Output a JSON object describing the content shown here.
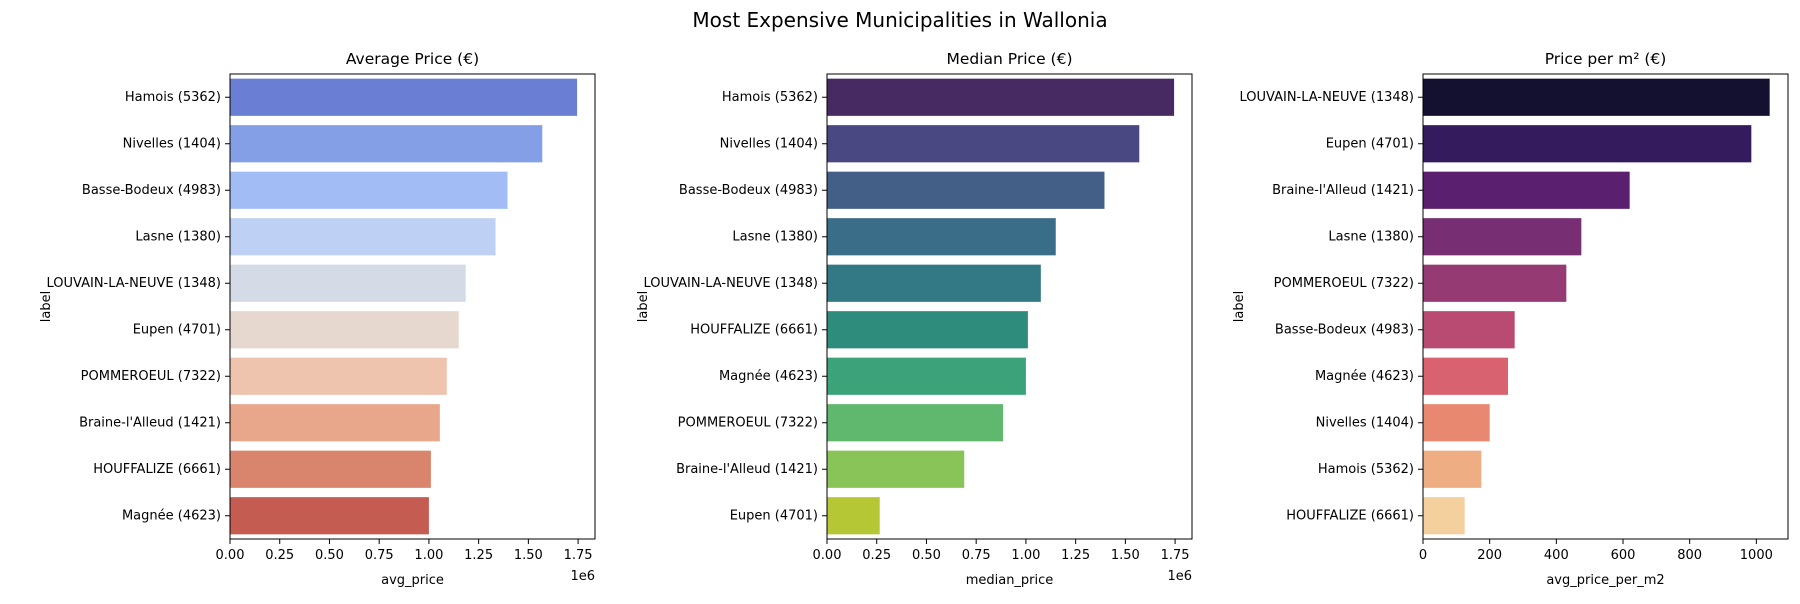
{
  "suptitle": "Most Expensive Municipalities in Wallonia",
  "chart_data": [
    {
      "type": "bar",
      "orientation": "horizontal",
      "title": "Average Price (€)",
      "xlabel": "avg_price",
      "ylabel": "label",
      "offset_label": "1e6",
      "xlim": [
        0,
        1.835
      ],
      "xticks": [
        0,
        0.25,
        0.5,
        0.75,
        1.0,
        1.25,
        1.5,
        1.75
      ],
      "xticklabels": [
        "0.00",
        "0.25",
        "0.50",
        "0.75",
        "1.00",
        "1.25",
        "1.50",
        "1.75"
      ],
      "categories": [
        "Hamois (5362)",
        "Nivelles (1404)",
        "Basse-Bodeux (4983)",
        "Lasne (1380)",
        "LOUVAIN-LA-NEUVE (1348)",
        "Eupen (4701)",
        "POMMEROEUL (7322)",
        "Braine-l'Alleud (1421)",
        "HOUFFALIZE (6661)",
        "Magnée (4623)"
      ],
      "values": [
        1.745,
        1.57,
        1.395,
        1.335,
        1.185,
        1.15,
        1.09,
        1.055,
        1.01,
        1.0
      ],
      "colors": [
        "#6a7fd3",
        "#849fe6",
        "#a2bcf5",
        "#bed0f3",
        "#d5dbe6",
        "#e6d8cf",
        "#eec4ae",
        "#e8a78a",
        "#d9846c",
        "#c55c51"
      ],
      "grid": false
    },
    {
      "type": "bar",
      "orientation": "horizontal",
      "title": "Median Price (€)",
      "xlabel": "median_price",
      "ylabel": "label",
      "offset_label": "1e6",
      "xlim": [
        0,
        1.835
      ],
      "xticks": [
        0,
        0.25,
        0.5,
        0.75,
        1.0,
        1.25,
        1.5,
        1.75
      ],
      "xticklabels": [
        "0.00",
        "0.25",
        "0.50",
        "0.75",
        "1.00",
        "1.25",
        "1.50",
        "1.75"
      ],
      "categories": [
        "Hamois (5362)",
        "Nivelles (1404)",
        "Basse-Bodeux (4983)",
        "Lasne (1380)",
        "LOUVAIN-LA-NEUVE (1348)",
        "HOUFFALIZE (6661)",
        "Magnée (4623)",
        "POMMEROEUL (7322)",
        "Braine-l'Alleud (1421)",
        "Eupen (4701)"
      ],
      "values": [
        1.745,
        1.57,
        1.395,
        1.15,
        1.075,
        1.01,
        1.0,
        0.885,
        0.69,
        0.265
      ],
      "colors": [
        "#482a63",
        "#4a4883",
        "#435f88",
        "#3a6d87",
        "#327985",
        "#2e8c7c",
        "#3ca27a",
        "#5fb86e",
        "#89c458",
        "#b5c735"
      ],
      "grid": false
    },
    {
      "type": "bar",
      "orientation": "horizontal",
      "title": "Price per m² (€)",
      "xlabel": "avg_price_per_m2",
      "ylabel": "label",
      "offset_label": "",
      "xlim": [
        0,
        1095
      ],
      "xticks": [
        0,
        200,
        400,
        600,
        800,
        1000
      ],
      "xticklabels": [
        "0",
        "200",
        "400",
        "600",
        "800",
        "1000"
      ],
      "categories": [
        "LOUVAIN-LA-NEUVE (1348)",
        "Eupen (4701)",
        "Braine-l'Alleud (1421)",
        "Lasne (1380)",
        "POMMEROEUL (7322)",
        "Basse-Bodeux (4983)",
        "Magnée (4623)",
        "Nivelles (1404)",
        "Hamois (5362)",
        "HOUFFALIZE (6661)"
      ],
      "values": [
        1040,
        985,
        620,
        475,
        430,
        275,
        255,
        200,
        175,
        125
      ],
      "colors": [
        "#14102f",
        "#331b5d",
        "#5b1f70",
        "#772e73",
        "#963a73",
        "#b94a72",
        "#d86270",
        "#e88870",
        "#efad83",
        "#f5d09f"
      ],
      "grid": false
    }
  ]
}
